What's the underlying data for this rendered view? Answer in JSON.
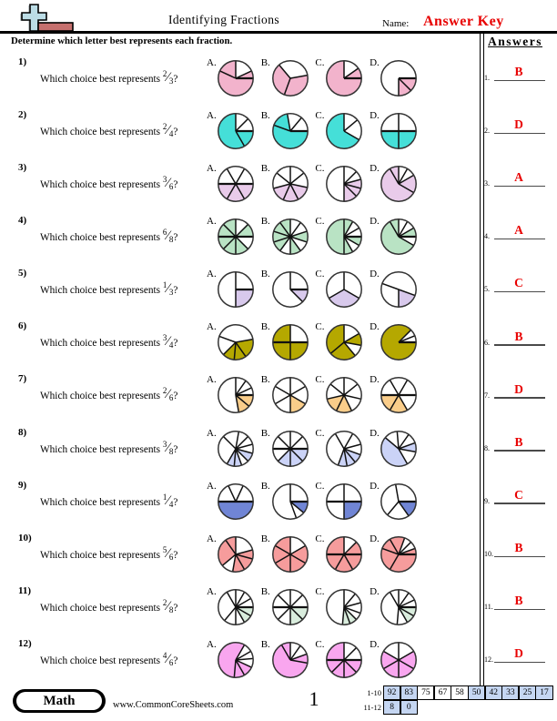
{
  "header": {
    "title": "Identifying Fractions",
    "name_label": "Name:",
    "answer_key": "Answer Key",
    "instruction": "Determine which letter best represents each fraction.",
    "accent_red": "#e80000"
  },
  "answers_panel": {
    "title": "Answers",
    "items": [
      {
        "n": "1.",
        "a": "B"
      },
      {
        "n": "2.",
        "a": "D"
      },
      {
        "n": "3.",
        "a": "A"
      },
      {
        "n": "4.",
        "a": "A"
      },
      {
        "n": "5.",
        "a": "C"
      },
      {
        "n": "6.",
        "a": "B"
      },
      {
        "n": "7.",
        "a": "D"
      },
      {
        "n": "8.",
        "a": "B"
      },
      {
        "n": "9.",
        "a": "C"
      },
      {
        "n": "10.",
        "a": "B"
      },
      {
        "n": "11.",
        "a": "B"
      },
      {
        "n": "12.",
        "a": "D"
      }
    ]
  },
  "questions": [
    {
      "n": "1)",
      "prompt": "Which choice best represents",
      "num": "2",
      "den": "3",
      "suffix": "?",
      "color": "#F2B3CC",
      "choices": [
        {
          "label": "A.",
          "b": [
            155,
            90,
            25,
            0
          ],
          "f": [
            1,
            0,
            1,
            1
          ]
        },
        {
          "label": "B.",
          "b": [
            130,
            10,
            -110
          ],
          "f": [
            0,
            1,
            1
          ]
        },
        {
          "label": "C.",
          "b": [
            90,
            35,
            0
          ],
          "f": [
            0,
            1,
            1
          ]
        },
        {
          "label": "D.",
          "b": [
            0,
            -45,
            -90
          ],
          "f": [
            1,
            1,
            0
          ]
        }
      ]
    },
    {
      "n": "2)",
      "prompt": "Which choice best represents",
      "num": "2",
      "den": "4",
      "suffix": "?",
      "color": "#45DFD8",
      "choices": [
        {
          "label": "A.",
          "b": [
            90,
            45,
            0,
            -60
          ],
          "f": [
            0,
            0,
            1,
            1
          ]
        },
        {
          "label": "B.",
          "b": [
            160,
            100,
            50,
            0
          ],
          "f": [
            1,
            0,
            0,
            1
          ]
        },
        {
          "label": "C.",
          "b": [
            90,
            40,
            -30
          ],
          "f": [
            0,
            0,
            1
          ]
        },
        {
          "label": "D.",
          "b": [
            180,
            90,
            0,
            -90
          ],
          "f": [
            0,
            0,
            1,
            1
          ]
        }
      ]
    },
    {
      "n": "3)",
      "prompt": "Which choice best represents",
      "num": "3",
      "den": "6",
      "suffix": "?",
      "color": "#E9CBEA",
      "choices": [
        {
          "label": "A.",
          "b": [
            180,
            120,
            60,
            0,
            -60,
            -120
          ],
          "f": [
            0,
            0,
            0,
            1,
            1,
            1
          ]
        },
        {
          "label": "B.",
          "b": [
            90,
            39,
            -12,
            -63,
            -114,
            -165,
            141
          ],
          "f": [
            0,
            0,
            1,
            1,
            1,
            0,
            0
          ]
        },
        {
          "label": "C.",
          "b": [
            90,
            45,
            15,
            -15,
            -45,
            -90
          ],
          "f": [
            0,
            0,
            1,
            1,
            1,
            0
          ]
        },
        {
          "label": "D.",
          "b": [
            120,
            90,
            60,
            30,
            -30
          ],
          "f": [
            1,
            0,
            0,
            1,
            1
          ]
        }
      ]
    },
    {
      "n": "4)",
      "prompt": "Which choice best represents",
      "num": "6",
      "den": "8",
      "suffix": "?",
      "color": "#B9E3C4",
      "choices": [
        {
          "label": "A.",
          "b": [
            90,
            45,
            0,
            -45,
            -90,
            -135,
            180,
            135
          ],
          "f": [
            0,
            1,
            0,
            1,
            1,
            1,
            1,
            1
          ]
        },
        {
          "label": "B.",
          "b": [
            90,
            54,
            18,
            -18,
            -54,
            -90,
            -126,
            -162,
            162,
            126
          ],
          "f": [
            0,
            0,
            1,
            0,
            1,
            0,
            1,
            1,
            1,
            1
          ]
        },
        {
          "label": "C.",
          "b": [
            90,
            60,
            30,
            0,
            -30,
            -60,
            -90
          ],
          "f": [
            1,
            0,
            0,
            1,
            0,
            1,
            1
          ]
        },
        {
          "label": "D.",
          "b": [
            120,
            90,
            60,
            30,
            0,
            -30
          ],
          "f": [
            1,
            0,
            0,
            1,
            0,
            1
          ]
        }
      ]
    },
    {
      "n": "5)",
      "prompt": "Which choice best represents",
      "num": "1",
      "den": "3",
      "suffix": "?",
      "color": "#D8C9EC",
      "choices": [
        {
          "label": "A.",
          "b": [
            90,
            0,
            -90
          ],
          "f": [
            0,
            1,
            0
          ]
        },
        {
          "label": "B.",
          "b": [
            90,
            0,
            -45
          ],
          "f": [
            0,
            1,
            0
          ]
        },
        {
          "label": "C.",
          "b": [
            90,
            -30,
            -150
          ],
          "f": [
            0,
            1,
            0
          ]
        },
        {
          "label": "D.",
          "b": [
            160,
            -20,
            -90
          ],
          "f": [
            0,
            1,
            0
          ]
        }
      ]
    },
    {
      "n": "6)",
      "prompt": "Which choice best represents",
      "num": "3",
      "den": "4",
      "suffix": "?",
      "color": "#B5A800",
      "choices": [
        {
          "label": "A.",
          "b": [
            160,
            10,
            -55,
            -95,
            -135
          ],
          "f": [
            0,
            1,
            1,
            1,
            0
          ]
        },
        {
          "label": "B.",
          "b": [
            90,
            0,
            -90,
            180
          ],
          "f": [
            0,
            1,
            1,
            1
          ]
        },
        {
          "label": "C.",
          "b": [
            90,
            30,
            -10,
            -50,
            -140
          ],
          "f": [
            0,
            1,
            0,
            1,
            1
          ]
        },
        {
          "label": "D.",
          "b": [
            45,
            22,
            0
          ],
          "f": [
            0,
            0,
            1
          ]
        }
      ]
    },
    {
      "n": "7)",
      "prompt": "Which choice best represents",
      "num": "2",
      "den": "6",
      "suffix": "?",
      "color": "#FACD8A",
      "choices": [
        {
          "label": "A.",
          "b": [
            90,
            55,
            25,
            0,
            -40,
            -80
          ],
          "f": [
            0,
            0,
            0,
            1,
            1,
            0
          ]
        },
        {
          "label": "B.",
          "b": [
            90,
            30,
            -30,
            -90,
            -150,
            150
          ],
          "f": [
            0,
            0,
            1,
            0,
            0,
            0
          ]
        },
        {
          "label": "C.",
          "b": [
            90,
            39,
            -13,
            -64,
            -116,
            -167,
            141
          ],
          "f": [
            0,
            0,
            0,
            1,
            1,
            0,
            0
          ]
        },
        {
          "label": "D.",
          "b": [
            180,
            120,
            60,
            0,
            -60,
            -120
          ],
          "f": [
            0,
            0,
            0,
            0,
            1,
            1
          ]
        }
      ]
    },
    {
      "n": "8)",
      "prompt": "Which choice best represents",
      "num": "3",
      "den": "8",
      "suffix": "?",
      "color": "#CBD3F7",
      "choices": [
        {
          "label": "A.",
          "b": [
            135,
            80,
            45,
            15,
            -15,
            -45,
            -70,
            -95,
            -120
          ],
          "f": [
            0,
            0,
            0,
            0,
            1,
            0,
            1,
            1,
            0
          ]
        },
        {
          "label": "B.",
          "b": [
            90,
            45,
            0,
            -45,
            -90,
            -135,
            180,
            135
          ],
          "f": [
            0,
            0,
            1,
            1,
            1,
            0,
            0,
            0
          ]
        },
        {
          "label": "C.",
          "b": [
            120,
            60,
            15,
            -20,
            -50,
            -80,
            -110
          ],
          "f": [
            0,
            0,
            0,
            1,
            1,
            1,
            0
          ]
        },
        {
          "label": "D.",
          "b": [
            140,
            95,
            55,
            20,
            -10,
            -60
          ],
          "f": [
            0,
            0,
            0,
            1,
            0,
            1
          ]
        }
      ]
    },
    {
      "n": "9)",
      "prompt": "Which choice best represents",
      "num": "1",
      "den": "4",
      "suffix": "?",
      "color": "#7085D5",
      "choices": [
        {
          "label": "A.",
          "b": [
            180,
            115,
            65,
            0
          ],
          "f": [
            0,
            0,
            0,
            1
          ]
        },
        {
          "label": "B.",
          "b": [
            90,
            0,
            -40,
            -70
          ],
          "f": [
            0,
            1,
            0,
            0
          ]
        },
        {
          "label": "C.",
          "b": [
            90,
            0,
            -90,
            180
          ],
          "f": [
            0,
            1,
            0,
            0
          ]
        },
        {
          "label": "D.",
          "b": [
            100,
            0,
            -55,
            -130
          ],
          "f": [
            0,
            1,
            0,
            0
          ]
        }
      ]
    },
    {
      "n": "10)",
      "prompt": "Which choice best represents",
      "num": "5",
      "den": "6",
      "suffix": "?",
      "color": "#F69C9C",
      "choices": [
        {
          "label": "A.",
          "b": [
            125,
            90,
            15,
            -15,
            -60,
            -100,
            -140
          ],
          "f": [
            1,
            0,
            1,
            1,
            1,
            0,
            1
          ]
        },
        {
          "label": "B.",
          "b": [
            90,
            30,
            -30,
            -90,
            -150,
            150
          ],
          "f": [
            0,
            1,
            1,
            1,
            1,
            1
          ]
        },
        {
          "label": "C.",
          "b": [
            90,
            45,
            0,
            -60,
            -120,
            180
          ],
          "f": [
            0,
            1,
            1,
            1,
            1,
            1
          ]
        },
        {
          "label": "D.",
          "b": [
            160,
            120,
            70,
            45,
            20,
            0,
            -120
          ],
          "f": [
            1,
            1,
            0,
            0,
            1,
            1,
            1
          ]
        }
      ]
    },
    {
      "n": "11)",
      "prompt": "Which choice best represents",
      "num": "2",
      "den": "8",
      "suffix": "?",
      "color": "#D9EDDD",
      "choices": [
        {
          "label": "A.",
          "b": [
            120,
            90,
            60,
            30,
            0,
            -30,
            -60,
            -90,
            -130
          ],
          "f": [
            0,
            0,
            0,
            0,
            1,
            1,
            0,
            0,
            0
          ]
        },
        {
          "label": "B.",
          "b": [
            90,
            45,
            0,
            -45,
            -90,
            -135,
            180,
            135
          ],
          "f": [
            0,
            0,
            1,
            1,
            0,
            0,
            0,
            0
          ]
        },
        {
          "label": "C.",
          "b": [
            90,
            50,
            15,
            -20,
            -45,
            -70,
            -95
          ],
          "f": [
            0,
            0,
            0,
            0,
            1,
            1,
            0
          ]
        },
        {
          "label": "D.",
          "b": [
            120,
            90,
            55,
            25,
            0,
            -30,
            -60,
            -95
          ],
          "f": [
            0,
            0,
            0,
            0,
            1,
            1,
            0,
            0
          ]
        }
      ]
    },
    {
      "n": "12)",
      "prompt": "Which choice best represents",
      "num": "4",
      "den": "6",
      "suffix": "?",
      "color": "#F9A6EF",
      "choices": [
        {
          "label": "A.",
          "b": [
            60,
            30,
            5,
            -25,
            -60,
            -95
          ],
          "f": [
            0,
            0,
            0,
            1,
            1,
            1
          ]
        },
        {
          "label": "B.",
          "b": [
            120,
            90,
            55,
            20,
            -10
          ],
          "f": [
            1,
            0,
            0,
            1,
            1
          ]
        },
        {
          "label": "C.",
          "b": [
            90,
            45,
            0,
            -45,
            -90,
            -135,
            180
          ],
          "f": [
            0,
            0,
            1,
            1,
            1,
            1,
            1
          ]
        },
        {
          "label": "D.",
          "b": [
            90,
            30,
            -30,
            -90,
            -150,
            150
          ],
          "f": [
            0,
            1,
            1,
            1,
            1,
            0
          ]
        }
      ]
    }
  ],
  "footer": {
    "subject": "Math",
    "site": "www.CommonCoreSheets.com",
    "page": "1",
    "grade_table": {
      "highlight_color": "#c5d6f2",
      "rows": [
        {
          "label": "1-10",
          "cells": [
            {
              "v": "92",
              "hl": true
            },
            {
              "v": "83",
              "hl": true
            },
            {
              "v": "75",
              "hl": false
            },
            {
              "v": "67",
              "hl": false
            },
            {
              "v": "58",
              "hl": false
            },
            {
              "v": "50",
              "hl": true
            },
            {
              "v": "42",
              "hl": true
            },
            {
              "v": "33",
              "hl": true
            },
            {
              "v": "25",
              "hl": true
            },
            {
              "v": "17",
              "hl": true
            }
          ]
        },
        {
          "label": "11-12",
          "cells": [
            {
              "v": "8",
              "hl": true
            },
            {
              "v": "0",
              "hl": true
            }
          ]
        }
      ]
    }
  }
}
